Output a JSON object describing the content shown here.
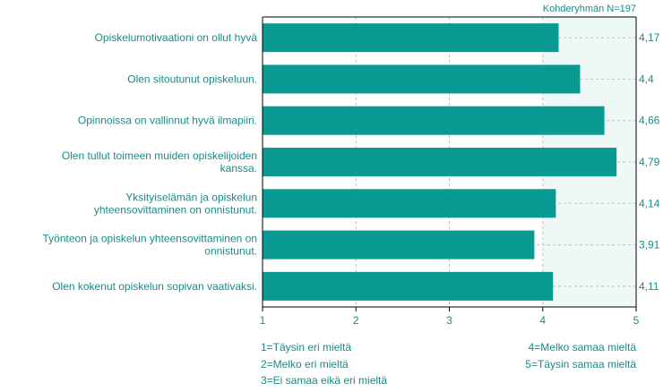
{
  "colors": {
    "bar": "#0a9a94",
    "text": "#1a8a87",
    "plot_bg": "#eef8f6",
    "grid": "#bfbfbf",
    "axis": "#000000"
  },
  "header": {
    "group_size": "Kohderyhmän N=197"
  },
  "chart_data": {
    "type": "bar",
    "orientation": "horizontal",
    "xlim": [
      1,
      5
    ],
    "x_ticks": [
      "1",
      "2",
      "3",
      "4",
      "5"
    ],
    "grid": true,
    "categories": [
      [
        "Opiskelumotivaationi on ollut hyvä"
      ],
      [
        "Olen sitoutunut opiskeluun."
      ],
      [
        "Opinnoissa on vallinnut hyvä ilmapiiri."
      ],
      [
        "Olen tullut toimeen muiden opiskelijoiden",
        "kanssa."
      ],
      [
        "Yksityiselämän ja opiskelun",
        "yhteensovittaminen on onnistunut."
      ],
      [
        "Työnteon ja opiskelun yhteensovittaminen on",
        "onnistunut."
      ],
      [
        "Olen kokenut opiskelun sopivan vaativaksi."
      ]
    ],
    "values": [
      4.17,
      4.4,
      4.66,
      4.79,
      4.14,
      3.91,
      4.11
    ],
    "value_labels": [
      "4,17",
      "4,4",
      "4,66",
      "4,79",
      "4,14",
      "3,91",
      "4,11"
    ]
  },
  "legend": {
    "left": [
      "1=Täysin eri mieltä",
      "2=Melko eri mieltä",
      "3=Ei samaa eikä eri mieltä"
    ],
    "right": [
      "4=Melko samaa mieltä",
      "5=Täysin samaa mieltä"
    ]
  }
}
